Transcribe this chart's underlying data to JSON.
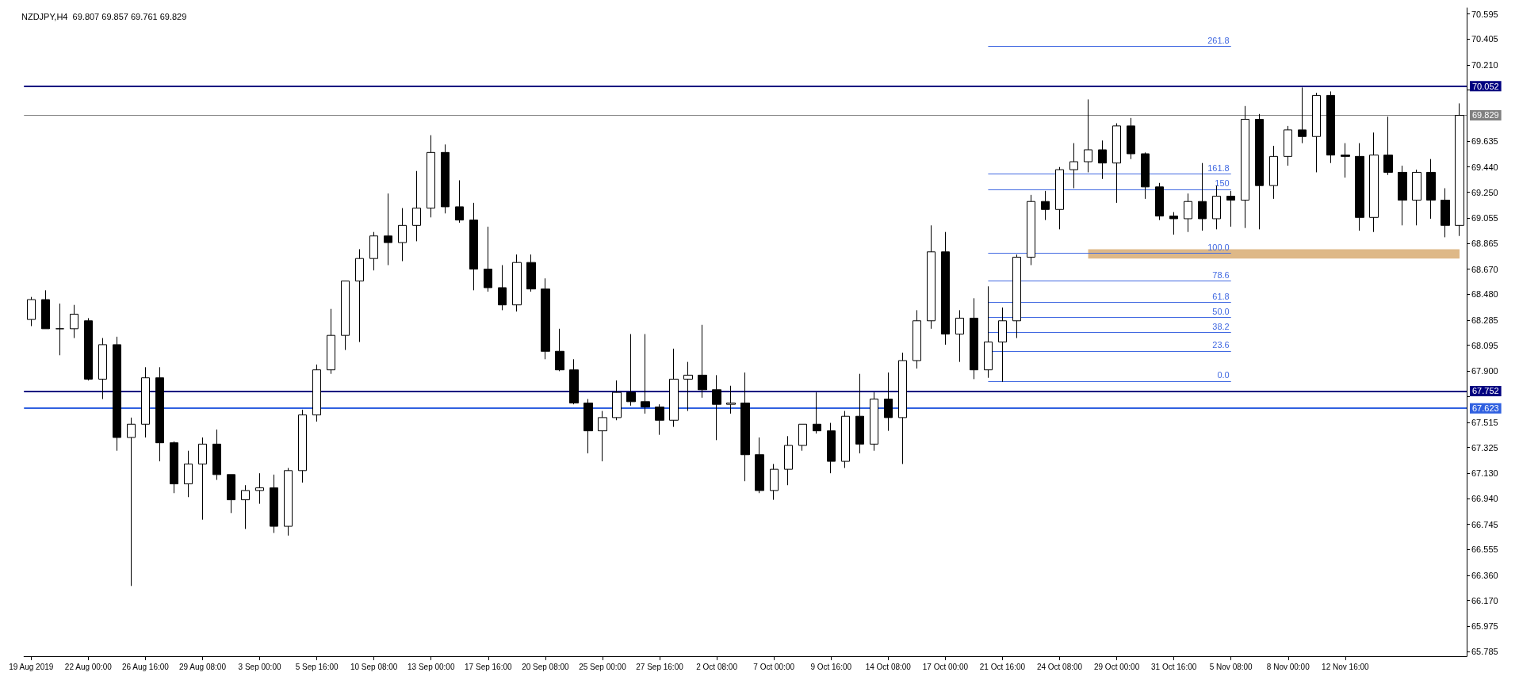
{
  "chart_data": {
    "type": "candlestick",
    "title": "NZDJPY,H4  69.807 69.857 69.761 69.829",
    "color": "#000000",
    "categories": [
      "19 Aug 2019",
      null,
      null,
      null,
      "22 Aug 00:00",
      null,
      null,
      null,
      "26 Aug 16:00",
      null,
      null,
      null,
      "29 Aug 08:00",
      null,
      null,
      null,
      "3 Sep 00:00",
      null,
      null,
      null,
      "5 Sep 16:00",
      null,
      null,
      null,
      "10 Sep 08:00",
      null,
      null,
      null,
      "13 Sep 00:00",
      null,
      null,
      null,
      "17 Sep 16:00",
      null,
      null,
      null,
      "20 Sep 08:00",
      null,
      null,
      null,
      "25 Sep 00:00",
      null,
      null,
      null,
      "27 Sep 16:00",
      null,
      null,
      null,
      "2 Oct 08:00",
      null,
      null,
      null,
      "7 Oct 00:00",
      null,
      null,
      null,
      "9 Oct 16:00",
      null,
      null,
      null,
      "14 Oct 08:00",
      null,
      null,
      null,
      "17 Oct 00:00",
      null,
      null,
      null,
      "21 Oct 16:00",
      null,
      null,
      null,
      "24 Oct 08:00",
      null,
      null,
      null,
      "29 Oct 00:00",
      null,
      null,
      null,
      "31 Oct 16:00",
      null,
      null,
      null,
      "5 Nov 08:00",
      null,
      null,
      null,
      "8 Nov 00:00",
      null,
      null,
      null,
      "12 Nov 16:00",
      null,
      null,
      null,
      null,
      null,
      null,
      null,
      null
    ],
    "ohlc": [
      [
        68.29,
        68.46,
        68.24,
        68.44
      ],
      [
        68.44,
        68.51,
        68.22,
        68.22
      ],
      [
        68.22,
        68.41,
        68.02,
        68.22
      ],
      [
        68.22,
        68.4,
        68.15,
        68.33
      ],
      [
        68.28,
        68.3,
        67.83,
        67.84
      ],
      [
        67.84,
        68.15,
        67.69,
        68.1
      ],
      [
        68.1,
        68.16,
        67.3,
        67.4
      ],
      [
        67.4,
        67.55,
        66.28,
        67.5
      ],
      [
        67.5,
        67.93,
        67.4,
        67.85
      ],
      [
        67.85,
        67.93,
        67.22,
        67.36
      ],
      [
        67.36,
        67.37,
        66.98,
        67.05
      ],
      [
        67.05,
        67.3,
        66.95,
        67.2
      ],
      [
        67.2,
        67.4,
        66.78,
        67.35
      ],
      [
        67.35,
        67.46,
        67.08,
        67.12
      ],
      [
        67.12,
        67.12,
        66.83,
        66.93
      ],
      [
        66.93,
        67.04,
        66.71,
        67.0
      ],
      [
        67.0,
        67.13,
        66.9,
        67.02
      ],
      [
        67.02,
        67.12,
        66.68,
        66.73
      ],
      [
        66.73,
        67.17,
        66.66,
        67.15
      ],
      [
        67.15,
        67.61,
        67.06,
        67.57
      ],
      [
        67.57,
        67.95,
        67.52,
        67.91
      ],
      [
        67.91,
        68.37,
        67.88,
        68.17
      ],
      [
        68.17,
        68.58,
        68.06,
        68.58
      ],
      [
        68.58,
        68.82,
        68.12,
        68.75
      ],
      [
        68.75,
        68.95,
        68.66,
        68.92
      ],
      [
        68.92,
        69.24,
        68.7,
        68.87
      ],
      [
        68.87,
        69.13,
        68.73,
        69.0
      ],
      [
        69.0,
        69.41,
        68.88,
        69.13
      ],
      [
        69.13,
        69.68,
        69.06,
        69.55
      ],
      [
        69.55,
        69.61,
        69.09,
        69.14
      ],
      [
        69.14,
        69.34,
        69.02,
        69.04
      ],
      [
        69.04,
        69.17,
        68.51,
        68.67
      ],
      [
        68.67,
        68.99,
        68.5,
        68.53
      ],
      [
        68.53,
        68.7,
        68.36,
        68.4
      ],
      [
        68.4,
        68.78,
        68.35,
        68.72
      ],
      [
        68.72,
        68.78,
        68.5,
        68.52
      ],
      [
        68.52,
        68.6,
        67.99,
        68.05
      ],
      [
        68.05,
        68.22,
        67.9,
        67.91
      ],
      [
        67.91,
        67.99,
        67.65,
        67.66
      ],
      [
        67.66,
        67.69,
        67.28,
        67.45
      ],
      [
        67.45,
        67.6,
        67.22,
        67.55
      ],
      [
        67.55,
        67.83,
        67.53,
        67.74
      ],
      [
        67.74,
        68.18,
        67.64,
        67.67
      ],
      [
        67.67,
        68.18,
        67.58,
        67.63
      ],
      [
        67.63,
        67.65,
        67.42,
        67.53
      ],
      [
        67.53,
        68.07,
        67.48,
        67.84
      ],
      [
        67.84,
        67.97,
        67.6,
        67.87
      ],
      [
        67.87,
        68.25,
        67.7,
        67.76
      ],
      [
        67.76,
        67.87,
        67.38,
        67.65
      ],
      [
        67.65,
        67.79,
        67.58,
        67.66
      ],
      [
        67.66,
        67.89,
        67.07,
        67.27
      ],
      [
        67.27,
        67.4,
        66.98,
        67.0
      ],
      [
        67.0,
        67.2,
        66.93,
        67.16
      ],
      [
        67.16,
        67.41,
        67.04,
        67.34
      ],
      [
        67.34,
        67.5,
        67.3,
        67.5
      ],
      [
        67.5,
        67.74,
        67.43,
        67.45
      ],
      [
        67.45,
        67.51,
        67.13,
        67.22
      ],
      [
        67.22,
        67.6,
        67.17,
        67.56
      ],
      [
        67.56,
        67.88,
        67.28,
        67.35
      ],
      [
        67.35,
        67.74,
        67.3,
        67.69
      ],
      [
        67.69,
        67.89,
        67.45,
        67.55
      ],
      [
        67.55,
        68.04,
        67.2,
        67.98
      ],
      [
        67.98,
        68.36,
        67.92,
        68.28
      ],
      [
        68.28,
        69.0,
        68.22,
        68.8
      ],
      [
        68.8,
        68.95,
        68.1,
        68.18
      ],
      [
        68.18,
        68.36,
        67.97,
        68.3
      ],
      [
        68.3,
        68.45,
        67.84,
        67.91
      ],
      [
        67.91,
        68.54,
        67.85,
        68.12
      ],
      [
        68.12,
        68.38,
        67.82,
        68.28
      ],
      [
        68.28,
        68.78,
        68.15,
        68.76
      ],
      [
        68.76,
        69.23,
        68.7,
        69.18
      ],
      [
        69.18,
        69.26,
        69.04,
        69.12
      ],
      [
        69.12,
        69.44,
        68.97,
        69.42
      ],
      [
        69.42,
        69.62,
        69.28,
        69.48
      ],
      [
        69.48,
        69.95,
        69.4,
        69.57
      ],
      [
        69.57,
        69.64,
        69.35,
        69.47
      ],
      [
        69.47,
        69.77,
        69.17,
        69.75
      ],
      [
        69.75,
        69.81,
        69.5,
        69.54
      ],
      [
        69.54,
        69.55,
        69.2,
        69.29
      ],
      [
        69.29,
        69.32,
        69.04,
        69.07
      ],
      [
        69.07,
        69.1,
        68.93,
        69.05
      ],
      [
        69.05,
        69.24,
        68.95,
        69.18
      ],
      [
        69.18,
        69.47,
        68.96,
        69.05
      ],
      [
        69.05,
        69.3,
        68.97,
        69.22
      ],
      [
        69.22,
        69.26,
        68.99,
        69.19
      ],
      [
        69.19,
        69.9,
        68.98,
        69.8
      ],
      [
        69.8,
        69.84,
        68.97,
        69.3
      ],
      [
        69.3,
        69.6,
        69.2,
        69.52
      ],
      [
        69.52,
        69.75,
        69.45,
        69.72
      ],
      [
        69.72,
        70.04,
        69.62,
        69.67
      ],
      [
        69.67,
        70.0,
        69.4,
        69.98
      ],
      [
        69.98,
        70.01,
        69.47,
        69.53
      ],
      [
        69.53,
        69.62,
        69.36,
        69.52
      ],
      [
        69.52,
        69.62,
        68.96,
        69.06
      ],
      [
        69.06,
        69.7,
        68.95,
        69.53
      ],
      [
        69.53,
        69.82,
        69.38,
        69.4
      ],
      [
        69.4,
        69.45,
        69.0,
        69.19
      ],
      [
        69.19,
        69.42,
        69.0,
        69.4
      ],
      [
        69.4,
        69.5,
        69.05,
        69.19
      ],
      [
        69.19,
        69.28,
        68.91,
        69.0
      ],
      [
        69.0,
        69.92,
        68.92,
        69.83
      ]
    ],
    "ylim": [
      65.75,
      70.64
    ],
    "yticks": [
      70.595,
      70.405,
      {
        "value": 70.21,
        "label": "70.210"
      },
      {
        "value": 70.02,
        "label": null
      },
      69.635,
      {
        "value": 69.44,
        "label": "69.440"
      },
      {
        "value": 69.25,
        "label": "69.250"
      },
      69.055,
      68.865,
      {
        "value": 68.67,
        "label": "68.670"
      },
      {
        "value": 68.48,
        "label": "68.480"
      },
      68.285,
      68.095,
      {
        "value": 67.9,
        "label": "67.900"
      },
      {
        "value": 67.71,
        "label": null
      },
      67.515,
      67.325,
      {
        "value": 67.13,
        "label": "67.130"
      },
      {
        "value": 66.94,
        "label": "66.940"
      },
      66.745,
      66.555,
      {
        "value": 66.36,
        "label": "66.360"
      },
      {
        "value": 66.17,
        "label": "66.170"
      },
      65.975,
      65.785
    ],
    "ref_lines": [
      {
        "axis": "y",
        "value": 70.052,
        "label": "70.052",
        "color": "#000080"
      },
      {
        "axis": "y",
        "value": 69.829,
        "label": "69.829",
        "color": "#808080"
      },
      {
        "axis": "y",
        "value": 67.752,
        "label": "67.752",
        "color": "#000080"
      },
      {
        "axis": "y",
        "value": 67.623,
        "label": "67.623",
        "color": "#3060e0"
      },
      {
        "axis": "y2",
        "value": 261.8,
        "label": "261.8",
        "color": "#4169e1"
      },
      {
        "axis": "y2",
        "value": 161.8,
        "label": "161.8",
        "color": "#4169e1"
      },
      {
        "axis": "y2",
        "value": 150,
        "label": "150",
        "color": "#4169e1"
      },
      {
        "axis": "y2",
        "value": 100,
        "label": "100.0",
        "color": "#4169e1"
      },
      {
        "axis": "y2",
        "value": 78.6,
        "label": "78.6",
        "color": "#4169e1"
      },
      {
        "axis": "y2",
        "value": 61.8,
        "label": "61.8",
        "color": "#4169e1"
      },
      {
        "axis": "y2",
        "value": 50,
        "label": "50.0",
        "color": "#4169e1"
      },
      {
        "axis": "y2",
        "value": 38.2,
        "label": "38.2",
        "color": "#4169e1"
      },
      {
        "axis": "y2",
        "value": 23.6,
        "label": "23.6",
        "color": "#4169e1"
      },
      {
        "axis": "y2",
        "value": 0,
        "label": "0.0",
        "color": "#4169e1"
      }
    ],
    "y2lim": [
      -215.0,
      291.7
    ],
    "bands": [
      {
        "axis": "y",
        "from": 68.75,
        "to": 68.82,
        "color": "#deb887"
      }
    ]
  }
}
